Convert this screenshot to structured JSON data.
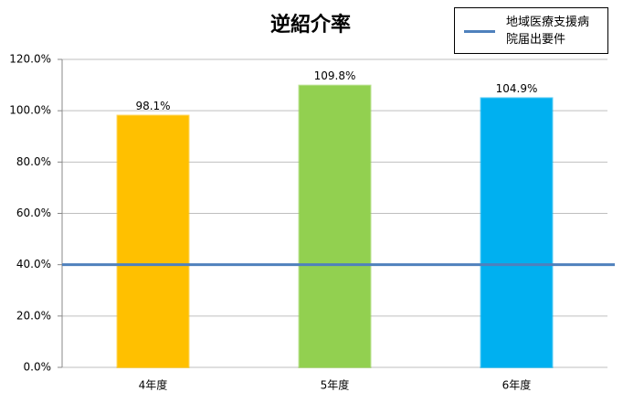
{
  "chart_data": {
    "type": "bar",
    "title": "逆紹介率",
    "categories": [
      "4年度",
      "5年度",
      "6年度"
    ],
    "values": [
      98.1,
      109.8,
      104.9
    ],
    "value_labels": [
      "98.1%",
      "109.8%",
      "104.9%"
    ],
    "colors": [
      "#ffc000",
      "#92d050",
      "#00b0f0"
    ],
    "ylim": [
      0,
      120
    ],
    "yticks": [
      {
        "value": 0,
        "label": "0.0%"
      },
      {
        "value": 20,
        "label": "20.0%"
      },
      {
        "value": 40,
        "label": "40.0%"
      },
      {
        "value": 60,
        "label": "60.0%"
      },
      {
        "value": 80,
        "label": "80.0%"
      },
      {
        "value": 100,
        "label": "100.0%"
      },
      {
        "value": 120,
        "label": "120.0%"
      }
    ],
    "grid": true,
    "reference_lines": [
      {
        "name": "地域医療支援病院届出要件",
        "value": 40,
        "color": "#4f81bd"
      }
    ],
    "legend": "top-right"
  }
}
